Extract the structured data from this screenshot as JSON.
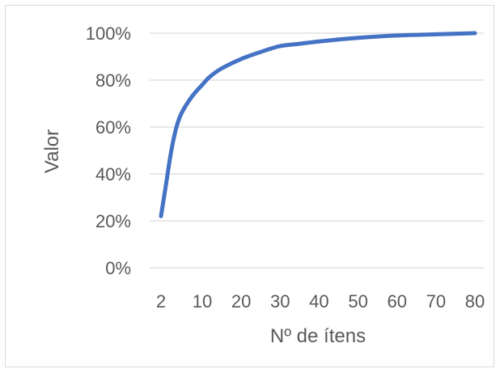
{
  "chart_data": {
    "type": "line",
    "xlabel": "Nº de ítens",
    "ylabel": "Valor",
    "x_ticks": [
      2,
      10,
      20,
      30,
      40,
      50,
      60,
      70,
      80
    ],
    "y_ticks": [
      "0%",
      "20%",
      "40%",
      "60%",
      "80%",
      "100%"
    ],
    "ylim": [
      0,
      1
    ],
    "xlim": [
      2,
      80
    ],
    "grid": "horizontal",
    "series": [
      {
        "color": "#4472c4",
        "x": [
          2,
          3,
          4,
          5,
          6,
          8,
          10,
          12,
          15,
          20,
          25,
          30,
          35,
          40,
          50,
          60,
          70,
          80
        ],
        "y": [
          0.22,
          0.36,
          0.5,
          0.6,
          0.66,
          0.73,
          0.78,
          0.815,
          0.85,
          0.89,
          0.92,
          0.945,
          0.955,
          0.965,
          0.98,
          0.99,
          0.995,
          1.0
        ]
      }
    ]
  }
}
